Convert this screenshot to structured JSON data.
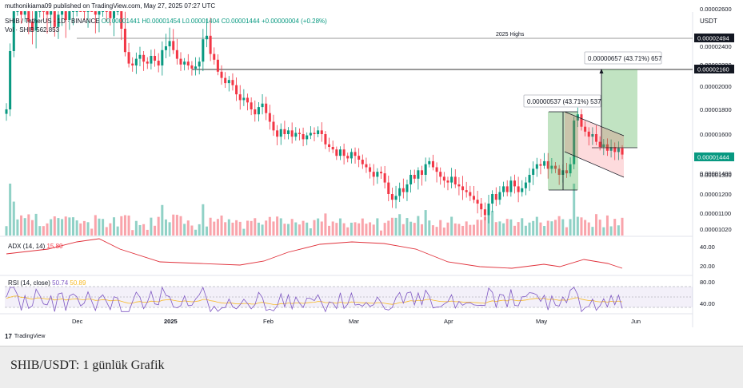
{
  "header": {
    "published": "muthonikiama09 published on TradingView.com, May 27, 2025 07:27 UTC"
  },
  "legend": {
    "symbol": "SHIB / TetherUS · 1D · BINANCE",
    "ohlc": "O0.00001441 H0.00001454 L0.00001404 C0.00001444 +0.00000004 (+0.28%)",
    "volume": "Vol · SHIB  562.853"
  },
  "indicators": {
    "adx_label": "ADX (14, 14)",
    "adx_value": "15.80",
    "rsi_label": "RSI (14, close)",
    "rsi_value1": "50.74",
    "rsi_value2": "50.89"
  },
  "axis": {
    "currency": "USDT"
  },
  "annotations": {
    "highs_label": "2025 Highs",
    "measure_left": "0.00000537 (43.71%) 537",
    "measure_right": "0.00000657 (43.71%) 657"
  },
  "price_badges": {
    "highs": "0.00002494",
    "target": "0.00002160",
    "current": "0.00001444"
  },
  "brand": "TradingView",
  "caption": "SHIB/USDT: 1 günlük Grafik",
  "colors": {
    "up": "#089981",
    "down": "#f23645",
    "adx_line": "#e0303a",
    "rsi_line": "#7e57c2",
    "rsi_ma": "#f7b924",
    "measure_fill": "#4caf50",
    "channel_fill": "#f23645"
  },
  "chart_data": {
    "type": "candlestick",
    "y_ticks": [
      "0.00002600",
      "0.00002400",
      "0.00002200",
      "0.00002000",
      "0.00001800",
      "0.00001600",
      "0.00001400",
      "0.00001300",
      "0.00001200",
      "0.00001100",
      "0.00001020"
    ],
    "x_ticks": [
      "Dec",
      "2025",
      "Feb",
      "Mar",
      "Apr",
      "May",
      "Jun"
    ],
    "adx_ticks": [
      "40.00",
      "20.00"
    ],
    "rsi_ticks": [
      "80.00",
      "40.00"
    ],
    "closes": [
      1.8e-05,
      2.35e-05,
      2.62e-05,
      2.7e-05,
      2.58e-05,
      2.62e-05,
      2.54e-05,
      2.49e-05,
      2.63e-05,
      2.68e-05,
      2.62e-05,
      2.58e-05,
      2.63e-05,
      2.51e-05,
      2.58e-05,
      2.67e-05,
      2.55e-05,
      2.62e-05,
      2.68e-05,
      2.72e-05,
      2.66e-05,
      2.62e-05,
      2.73e-05,
      2.7e-05,
      2.58e-05,
      2.62e-05,
      2.68e-05,
      2.65e-05,
      2.56e-05,
      2.62e-05,
      2.65e-05,
      2.5e-05,
      2.34e-05,
      2.22e-05,
      2.2e-05,
      2.27e-05,
      2.31e-05,
      2.24e-05,
      2.22e-05,
      2.3e-05,
      2.25e-05,
      2.2e-05,
      2.36e-05,
      2.4e-05,
      2.43e-05,
      2.36e-05,
      2.27e-05,
      2.21e-05,
      2.24e-05,
      2.2e-05,
      2.17e-05,
      2.19e-05,
      2.24e-05,
      2.44e-05,
      2.46e-05,
      2.32e-05,
      2.26e-05,
      2.14e-05,
      2.08e-05,
      2.03e-05,
      2.06e-05,
      2.01e-05,
      1.93e-05,
      1.88e-05,
      1.9e-05,
      1.86e-05,
      1.8e-05,
      1.76e-05,
      1.82e-05,
      1.85e-05,
      1.77e-05,
      1.7e-05,
      1.63e-05,
      1.58e-05,
      1.64e-05,
      1.6e-05,
      1.63e-05,
      1.58e-05,
      1.61e-05,
      1.6e-05,
      1.56e-05,
      1.59e-05,
      1.61e-05,
      1.6e-05,
      1.63e-05,
      1.6e-05,
      1.52e-05,
      1.5e-05,
      1.48e-05,
      1.43e-05,
      1.48e-05,
      1.43e-05,
      1.41e-05,
      1.46e-05,
      1.43e-05,
      1.4e-05,
      1.37e-05,
      1.35e-05,
      1.32e-05,
      1.29e-05,
      1.32e-05,
      1.31e-05,
      1.26e-05,
      1.2e-05,
      1.17e-05,
      1.19e-05,
      1.23e-05,
      1.21e-05,
      1.25e-05,
      1.3e-05,
      1.28e-05,
      1.33e-05,
      1.3e-05,
      1.37e-05,
      1.39e-05,
      1.35e-05,
      1.32e-05,
      1.29e-05,
      1.27e-05,
      1.26e-05,
      1.29e-05,
      1.25e-05,
      1.24e-05,
      1.22e-05,
      1.21e-05,
      1.19e-05,
      1.17e-05,
      1.15e-05,
      1.12e-05,
      1.09e-05,
      1.15e-05,
      1.2e-05,
      1.17e-05,
      1.21e-05,
      1.24e-05,
      1.21e-05,
      1.27e-05,
      1.24e-05,
      1.21e-05,
      1.23e-05,
      1.26e-05,
      1.3e-05,
      1.34e-05,
      1.37e-05,
      1.36e-05,
      1.39e-05,
      1.34e-05,
      1.36e-05,
      1.34e-05,
      1.3e-05,
      1.33e-05,
      1.31e-05,
      1.37e-05,
      1.71e-05,
      1.76e-05,
      1.66e-05,
      1.62e-05,
      1.58e-05,
      1.6e-05,
      1.54e-05,
      1.5e-05,
      1.52e-05,
      1.47e-05,
      1.5e-05,
      1.46e-05,
      1.49e-05,
      1.44e-05
    ]
  }
}
